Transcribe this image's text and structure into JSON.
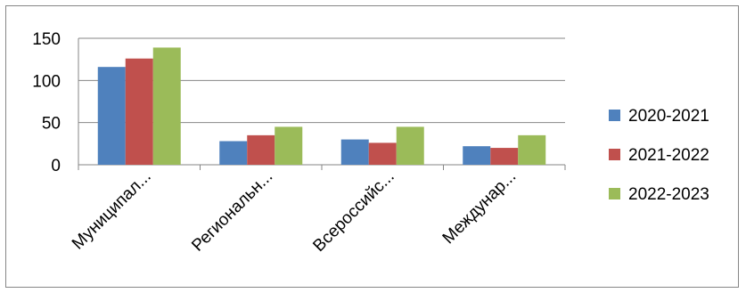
{
  "chart_data": {
    "type": "bar",
    "categories": [
      "Муниципал...",
      "Региональн...",
      "Всероссийс...",
      "Междунар..."
    ],
    "series": [
      {
        "name": "2020-2021",
        "color": "#4F81BD",
        "values": [
          116,
          28,
          30,
          22
        ]
      },
      {
        "name": "2021-2022",
        "color": "#C0504D",
        "values": [
          126,
          35,
          26,
          20
        ]
      },
      {
        "name": "2022-2023",
        "color": "#9BBB59",
        "values": [
          139,
          45,
          45,
          35
        ]
      }
    ],
    "yticks": [
      0,
      50,
      100,
      150
    ],
    "ylim": [
      0,
      150
    ],
    "grid": true,
    "legend_position": "right",
    "title": "",
    "xlabel": "",
    "ylabel": ""
  }
}
